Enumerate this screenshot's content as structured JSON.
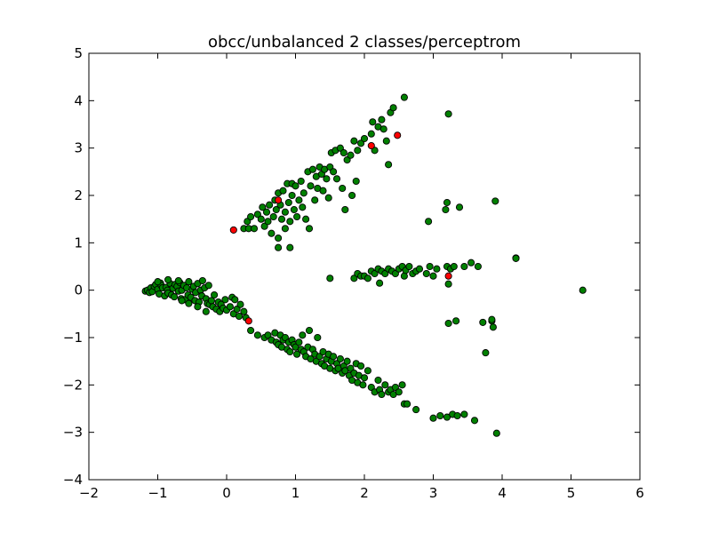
{
  "chart_data": {
    "type": "scatter",
    "title": "obcc/unbalanced 2 classes/perceptrom",
    "xlabel": "",
    "ylabel": "",
    "xlim": [
      -2,
      6
    ],
    "ylim": [
      -4,
      5
    ],
    "x_ticks": [
      -2,
      -1,
      0,
      1,
      2,
      3,
      4,
      5,
      6
    ],
    "y_ticks": [
      -4,
      -3,
      -2,
      -1,
      0,
      1,
      2,
      3,
      4,
      5
    ],
    "x_tick_labels": [
      "−2",
      "−1",
      "0",
      "1",
      "2",
      "3",
      "4",
      "5",
      "6"
    ],
    "y_tick_labels": [
      "−4",
      "−3",
      "−2",
      "−1",
      "0",
      "1",
      "2",
      "3",
      "4",
      "5"
    ],
    "grid": false,
    "legend": "none",
    "colors": {
      "majority": "#008000",
      "minority": "#ff0000",
      "edge": "#000000"
    },
    "series": [
      {
        "color": "#008000",
        "points": [
          [
            -1.18,
            -0.02
          ],
          [
            -1.15,
            0.0
          ],
          [
            -1.12,
            -0.05
          ],
          [
            -1.1,
            0.05
          ],
          [
            -1.08,
            -0.03
          ],
          [
            -1.05,
            0.08
          ],
          [
            -1.03,
            0.12
          ],
          [
            -1.0,
            0.02
          ],
          [
            -0.98,
            -0.08
          ],
          [
            -0.96,
            0.15
          ],
          [
            -0.95,
            0.1
          ],
          [
            -0.93,
            0.05
          ],
          [
            -0.9,
            -0.12
          ],
          [
            -0.88,
            0.06
          ],
          [
            -0.86,
            0.0
          ],
          [
            -0.85,
            -0.06
          ],
          [
            -0.82,
            0.14
          ],
          [
            -0.8,
            -0.1
          ],
          [
            -0.78,
            0.04
          ],
          [
            -0.76,
            -0.14
          ],
          [
            -0.75,
            0.12
          ],
          [
            -0.72,
            0.08
          ],
          [
            -0.7,
            -0.02
          ],
          [
            -0.68,
            0.16
          ],
          [
            -0.66,
            -0.18
          ],
          [
            -0.65,
            0.0
          ],
          [
            -0.62,
            0.1
          ],
          [
            -0.6,
            -0.2
          ],
          [
            -0.58,
            0.05
          ],
          [
            -0.56,
            -0.1
          ],
          [
            -0.55,
            0.18
          ],
          [
            -0.52,
            -0.15
          ],
          [
            -0.5,
            0.02
          ],
          [
            -0.48,
            0.08
          ],
          [
            -0.46,
            -0.22
          ],
          [
            -0.45,
            -0.05
          ],
          [
            -0.42,
            0.14
          ],
          [
            -0.4,
            -0.25
          ],
          [
            -0.38,
            0.0
          ],
          [
            -0.36,
            -0.12
          ],
          [
            -0.35,
            0.2
          ],
          [
            -0.32,
            0.05
          ],
          [
            -0.3,
            -0.18
          ],
          [
            -0.28,
            -0.28
          ],
          [
            -0.26,
            0.1
          ],
          [
            -0.25,
            -0.3
          ],
          [
            -0.22,
            -0.22
          ],
          [
            -0.2,
            -0.35
          ],
          [
            -0.18,
            -0.1
          ],
          [
            -0.15,
            -0.4
          ],
          [
            -0.12,
            -0.25
          ],
          [
            -0.1,
            -0.45
          ],
          [
            -0.08,
            -0.3
          ],
          [
            -0.05,
            -0.38
          ],
          [
            -0.02,
            -0.2
          ],
          [
            0.0,
            -0.42
          ],
          [
            0.05,
            -0.35
          ],
          [
            0.08,
            -0.15
          ],
          [
            0.1,
            -0.5
          ],
          [
            0.12,
            -0.2
          ],
          [
            0.15,
            -0.4
          ],
          [
            0.18,
            -0.55
          ],
          [
            0.2,
            -0.3
          ],
          [
            -0.3,
            -0.45
          ],
          [
            -0.42,
            -0.35
          ],
          [
            -0.55,
            -0.28
          ],
          [
            -0.65,
            -0.22
          ],
          [
            -0.7,
            0.2
          ],
          [
            -0.85,
            0.22
          ],
          [
            -1.0,
            0.18
          ],
          [
            0.25,
            -0.45
          ],
          [
            0.28,
            -0.58
          ],
          [
            0.35,
            -0.85
          ],
          [
            0.45,
            -0.95
          ],
          [
            0.55,
            -1.0
          ],
          [
            0.6,
            -0.95
          ],
          [
            0.65,
            -1.05
          ],
          [
            0.7,
            -0.9
          ],
          [
            0.72,
            -1.1
          ],
          [
            0.75,
            -1.15
          ],
          [
            0.78,
            -0.95
          ],
          [
            0.8,
            -1.2
          ],
          [
            0.82,
            -1.05
          ],
          [
            0.85,
            -1.0
          ],
          [
            0.88,
            -1.25
          ],
          [
            0.9,
            -1.1
          ],
          [
            0.92,
            -1.3
          ],
          [
            0.95,
            -1.05
          ],
          [
            0.98,
            -1.15
          ],
          [
            1.0,
            -1.2
          ],
          [
            1.02,
            -1.35
          ],
          [
            1.05,
            -1.1
          ],
          [
            1.08,
            -1.25
          ],
          [
            1.1,
            -0.95
          ],
          [
            1.12,
            -1.3
          ],
          [
            1.15,
            -1.4
          ],
          [
            1.18,
            -1.2
          ],
          [
            1.2,
            -0.85
          ],
          [
            1.22,
            -1.45
          ],
          [
            1.25,
            -1.25
          ],
          [
            1.28,
            -1.35
          ],
          [
            1.3,
            -1.5
          ],
          [
            1.32,
            -1.0
          ],
          [
            1.35,
            -1.4
          ],
          [
            1.38,
            -1.55
          ],
          [
            1.4,
            -1.3
          ],
          [
            1.42,
            -1.6
          ],
          [
            1.45,
            -1.45
          ],
          [
            1.48,
            -1.35
          ],
          [
            1.5,
            -1.65
          ],
          [
            1.52,
            -1.5
          ],
          [
            1.55,
            -1.4
          ],
          [
            1.58,
            -1.7
          ],
          [
            1.6,
            -1.55
          ],
          [
            1.62,
            -1.65
          ],
          [
            1.65,
            -1.45
          ],
          [
            1.68,
            -1.75
          ],
          [
            1.7,
            -1.6
          ],
          [
            1.72,
            -1.7
          ],
          [
            1.75,
            -1.5
          ],
          [
            1.78,
            -1.8
          ],
          [
            1.8,
            -1.65
          ],
          [
            1.82,
            -1.9
          ],
          [
            1.85,
            -1.75
          ],
          [
            1.88,
            -1.55
          ],
          [
            1.9,
            -1.95
          ],
          [
            1.92,
            -1.8
          ],
          [
            1.95,
            -1.6
          ],
          [
            1.98,
            -2.0
          ],
          [
            2.0,
            -1.85
          ],
          [
            2.05,
            -1.7
          ],
          [
            2.1,
            -2.05
          ],
          [
            2.15,
            -2.15
          ],
          [
            2.2,
            -1.9
          ],
          [
            2.22,
            -2.1
          ],
          [
            2.25,
            -2.2
          ],
          [
            2.3,
            -2.0
          ],
          [
            2.35,
            -2.15
          ],
          [
            2.38,
            -2.1
          ],
          [
            2.42,
            -2.2
          ],
          [
            2.45,
            -2.05
          ],
          [
            2.5,
            -2.15
          ],
          [
            2.55,
            -2.0
          ],
          [
            2.58,
            -2.4
          ],
          [
            2.62,
            -2.4
          ],
          [
            2.75,
            -2.52
          ],
          [
            3.0,
            -2.7
          ],
          [
            3.1,
            -2.65
          ],
          [
            3.2,
            -2.68
          ],
          [
            3.28,
            -2.62
          ],
          [
            3.35,
            -2.65
          ],
          [
            3.45,
            -2.62
          ],
          [
            3.6,
            -2.75
          ],
          [
            3.92,
            -3.02
          ],
          [
            0.25,
            1.3
          ],
          [
            0.3,
            1.45
          ],
          [
            0.32,
            1.3
          ],
          [
            0.35,
            1.55
          ],
          [
            0.4,
            1.3
          ],
          [
            0.45,
            1.6
          ],
          [
            0.5,
            1.5
          ],
          [
            0.52,
            1.75
          ],
          [
            0.55,
            1.35
          ],
          [
            0.58,
            1.65
          ],
          [
            0.6,
            1.45
          ],
          [
            0.62,
            1.8
          ],
          [
            0.65,
            1.2
          ],
          [
            0.68,
            1.55
          ],
          [
            0.7,
            1.9
          ],
          [
            0.72,
            1.7
          ],
          [
            0.75,
            1.1
          ],
          [
            0.75,
            2.05
          ],
          [
            0.78,
            1.8
          ],
          [
            0.8,
            1.5
          ],
          [
            0.82,
            2.1
          ],
          [
            0.85,
            1.65
          ],
          [
            0.88,
            2.25
          ],
          [
            0.9,
            1.85
          ],
          [
            0.92,
            1.45
          ],
          [
            0.95,
            2.0
          ],
          [
            0.98,
            1.7
          ],
          [
            0.95,
            2.25
          ],
          [
            1.0,
            2.2
          ],
          [
            1.02,
            1.55
          ],
          [
            1.05,
            1.9
          ],
          [
            1.08,
            2.3
          ],
          [
            1.1,
            1.75
          ],
          [
            1.12,
            2.05
          ],
          [
            1.15,
            1.5
          ],
          [
            1.18,
            2.5
          ],
          [
            1.2,
            1.3
          ],
          [
            1.22,
            2.2
          ],
          [
            1.25,
            2.55
          ],
          [
            1.28,
            1.9
          ],
          [
            1.3,
            2.4
          ],
          [
            1.32,
            2.15
          ],
          [
            1.35,
            2.6
          ],
          [
            1.38,
            2.45
          ],
          [
            1.4,
            2.1
          ],
          [
            1.42,
            2.55
          ],
          [
            1.45,
            2.35
          ],
          [
            1.48,
            1.95
          ],
          [
            1.5,
            2.6
          ],
          [
            1.52,
            2.9
          ],
          [
            1.55,
            2.5
          ],
          [
            1.58,
            2.95
          ],
          [
            1.6,
            2.35
          ],
          [
            1.65,
            3.0
          ],
          [
            1.68,
            2.15
          ],
          [
            1.7,
            2.9
          ],
          [
            1.72,
            1.7
          ],
          [
            1.75,
            2.75
          ],
          [
            1.8,
            2.85
          ],
          [
            1.82,
            2.0
          ],
          [
            1.85,
            3.15
          ],
          [
            1.88,
            2.3
          ],
          [
            1.9,
            2.95
          ],
          [
            1.95,
            3.1
          ],
          [
            2.0,
            3.2
          ],
          [
            2.1,
            3.3
          ],
          [
            2.12,
            3.55
          ],
          [
            2.15,
            2.95
          ],
          [
            2.2,
            3.45
          ],
          [
            2.25,
            3.6
          ],
          [
            2.28,
            3.4
          ],
          [
            2.32,
            3.15
          ],
          [
            2.35,
            2.65
          ],
          [
            2.38,
            3.75
          ],
          [
            2.42,
            3.85
          ],
          [
            2.58,
            4.07
          ],
          [
            3.22,
            3.72
          ],
          [
            0.75,
            0.9
          ],
          [
            0.92,
            0.9
          ],
          [
            0.85,
            1.3
          ],
          [
            1.5,
            0.25
          ],
          [
            1.85,
            0.25
          ],
          [
            1.9,
            0.35
          ],
          [
            1.95,
            0.3
          ],
          [
            2.0,
            0.3
          ],
          [
            2.05,
            0.25
          ],
          [
            2.1,
            0.4
          ],
          [
            2.15,
            0.35
          ],
          [
            2.2,
            0.45
          ],
          [
            2.22,
            0.15
          ],
          [
            2.25,
            0.4
          ],
          [
            2.3,
            0.35
          ],
          [
            2.35,
            0.45
          ],
          [
            2.4,
            0.4
          ],
          [
            2.45,
            0.35
          ],
          [
            2.5,
            0.45
          ],
          [
            2.55,
            0.5
          ],
          [
            2.58,
            0.3
          ],
          [
            2.6,
            0.42
          ],
          [
            2.65,
            0.5
          ],
          [
            2.7,
            0.35
          ],
          [
            2.75,
            0.4
          ],
          [
            2.8,
            0.45
          ],
          [
            2.9,
            0.35
          ],
          [
            2.95,
            0.5
          ],
          [
            3.0,
            0.3
          ],
          [
            3.05,
            0.45
          ],
          [
            3.2,
            0.5
          ],
          [
            3.22,
            0.13
          ],
          [
            3.25,
            0.45
          ],
          [
            3.3,
            0.5
          ],
          [
            3.45,
            0.5
          ],
          [
            3.55,
            0.58
          ],
          [
            3.65,
            0.5
          ],
          [
            4.2,
            0.68
          ],
          [
            4.2,
            0.67
          ],
          [
            5.17,
            0.0
          ],
          [
            2.93,
            1.45
          ],
          [
            3.18,
            1.7
          ],
          [
            3.2,
            1.85
          ],
          [
            3.38,
            1.75
          ],
          [
            3.9,
            1.88
          ],
          [
            3.22,
            -0.7
          ],
          [
            3.33,
            -0.65
          ],
          [
            3.72,
            -0.68
          ],
          [
            3.85,
            -0.65
          ],
          [
            3.85,
            -0.62
          ],
          [
            3.87,
            -0.78
          ],
          [
            3.76,
            -1.32
          ]
        ]
      },
      {
        "color": "#ff0000",
        "points": [
          [
            0.1,
            1.27
          ],
          [
            0.32,
            -0.65
          ],
          [
            0.75,
            1.9
          ],
          [
            2.1,
            3.05
          ],
          [
            2.48,
            3.27
          ],
          [
            3.22,
            0.3
          ]
        ]
      }
    ]
  }
}
